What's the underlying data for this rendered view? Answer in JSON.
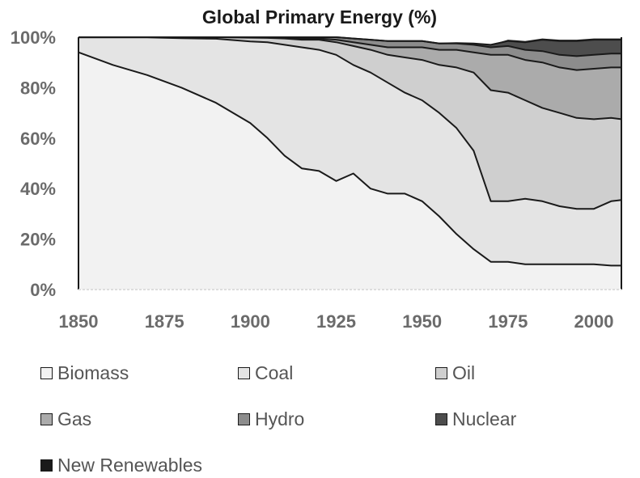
{
  "chart_data": {
    "type": "area",
    "stacked": true,
    "title": "Global Primary Energy (%)",
    "xlabel": "",
    "ylabel": "",
    "x": [
      1850,
      1860,
      1870,
      1880,
      1890,
      1900,
      1905,
      1910,
      1915,
      1920,
      1925,
      1930,
      1935,
      1940,
      1945,
      1950,
      1955,
      1960,
      1965,
      1970,
      1975,
      1980,
      1985,
      1990,
      1995,
      2000,
      2005,
      2008
    ],
    "xlim": [
      1850,
      2008
    ],
    "ylim": [
      0,
      100
    ],
    "x_ticks": [
      "1850",
      "1875",
      "1900",
      "1925",
      "1950",
      "1975",
      "2000"
    ],
    "y_ticks": [
      "0%",
      "20%",
      "40%",
      "60%",
      "80%",
      "100%"
    ],
    "grid": false,
    "legend_position": "bottom",
    "series": [
      {
        "name": "Biomass",
        "color": "#f2f2f2",
        "values": [
          94,
          89,
          85,
          80,
          74,
          66,
          60,
          53,
          48,
          47,
          43,
          46,
          40,
          38,
          38,
          35,
          29,
          22,
          16,
          11,
          11,
          10,
          10,
          10,
          10,
          10,
          9.5,
          9.5
        ]
      },
      {
        "name": "Coal",
        "color": "#e4e4e4",
        "values": [
          5.9,
          10.9,
          14.9,
          19.6,
          25.4,
          32.3,
          38.0,
          44.0,
          48.0,
          48.0,
          50.0,
          43.0,
          46.0,
          44.0,
          40.0,
          40.0,
          41.0,
          42.0,
          39.0,
          24.0,
          24.0,
          26.0,
          25.0,
          23.0,
          22.0,
          22.0,
          25.5,
          26.0
        ]
      },
      {
        "name": "Oil",
        "color": "#cfcfcf",
        "values": [
          0.1,
          0.1,
          0.1,
          0.4,
          0.6,
          1.5,
          1.7,
          2.5,
          3.0,
          4.0,
          5.0,
          7.5,
          9.0,
          11.0,
          14.0,
          16.0,
          19.0,
          24.0,
          31.0,
          44.0,
          43.0,
          39.0,
          37.0,
          37.0,
          36.0,
          35.5,
          33.0,
          32.0
        ]
      },
      {
        "name": "Gas",
        "color": "#ababab",
        "values": [
          0,
          0,
          0,
          0,
          0,
          0.2,
          0.3,
          0.4,
          0.5,
          0.5,
          1.0,
          1.5,
          2.0,
          3.0,
          4.0,
          5.0,
          6.0,
          7.0,
          8.0,
          14.0,
          15.0,
          16.0,
          18.0,
          18.0,
          19.0,
          20.0,
          20.0,
          20.5
        ]
      },
      {
        "name": "Hydro",
        "color": "#8c8c8c",
        "values": [
          0,
          0,
          0,
          0,
          0,
          0,
          0,
          0.1,
          0.5,
          0.5,
          1.0,
          1.5,
          2.0,
          2.5,
          2.5,
          2.5,
          2.5,
          2.5,
          3.0,
          3.0,
          3.5,
          4.0,
          4.5,
          5.0,
          5.5,
          5.5,
          5.5,
          5.5
        ]
      },
      {
        "name": "Nuclear",
        "color": "#4d4d4d",
        "values": [
          0,
          0,
          0,
          0,
          0,
          0,
          0,
          0,
          0,
          0,
          0,
          0,
          0,
          0,
          0,
          0,
          0,
          0.2,
          0.5,
          1.0,
          2.0,
          3.0,
          4.5,
          5.5,
          6.0,
          6.0,
          5.5,
          5.5
        ]
      },
      {
        "name": "New Renewables",
        "color": "#1a1a1a",
        "values": [
          0,
          0,
          0,
          0,
          0,
          0,
          0,
          0,
          0,
          0,
          0,
          0,
          0,
          0,
          0,
          0,
          0,
          0,
          0,
          0,
          0.5,
          0.5,
          0.5,
          0.5,
          0.5,
          0.5,
          0.5,
          0.5
        ]
      }
    ]
  }
}
